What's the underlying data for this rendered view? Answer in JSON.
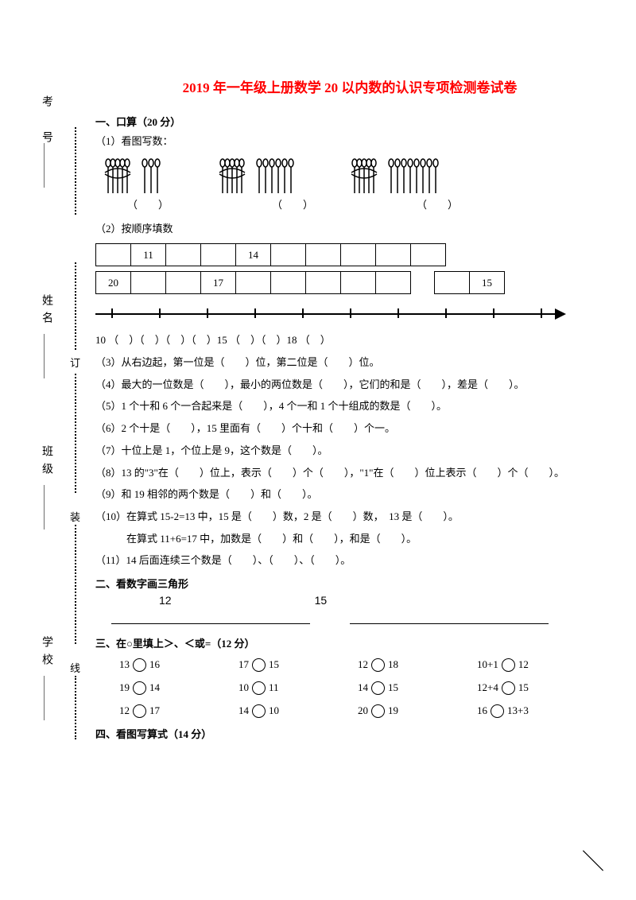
{
  "title": "2019 年一年级上册数学 20 以内数的认识专项检测卷试卷",
  "binding": {
    "labels": [
      "考 号",
      "姓名",
      "班级",
      "学校"
    ],
    "marks": [
      "订",
      "装",
      "线"
    ]
  },
  "section1": {
    "heading": "一、口算（20 分）",
    "q1_label": "（1）看图写数：",
    "paren": "（　　）",
    "q2_label": "（2）按顺序填数",
    "seq1": [
      "",
      "11",
      "",
      "",
      "14",
      "",
      "",
      "",
      "",
      ""
    ],
    "seq2_left": [
      "20",
      "",
      "",
      "17",
      "",
      "",
      "",
      "",
      ""
    ],
    "seq2_right": [
      "",
      "15"
    ],
    "numline": "10 （　）（　）（　）（　）15 （　）（　）18 （　）",
    "q3": "（3）从右边起，第一位是（　　）位，第二位是（　　）位。",
    "q4": "（4）最大的一位数是（　　），最小的两位数是（　　），它们的和是（　　），差是（　　）。",
    "q5": "（5）1 个十和 6 个一合起来是（　　），4 个一和 1 个十组成的数是（　　）。",
    "q6": "（6）2 个十是（　　），15 里面有（　　）个十和（　　）个一。",
    "q7": "（7）十位上是 1，个位上是 9，这个数是（　　）。",
    "q8": "（8）13 的\"3\"在（　　）位上，表示（　　）个（　　），\"1\"在（　　）位上表示（　　）个（　　）。",
    "q9": "（9）和 19 相邻的两个数是（　　）和（　　）。",
    "q10a": "（10）在算式 15-2=13 中，15 是（　　）数，2 是（　　）数，　13 是（　　）。",
    "q10b": "　　　在算式 11+6=17 中，加数是（　　）和（　　），和是（　　）。",
    "q11": "（11）14 后面连续三个数是（　　）、（　　）、（　　）。"
  },
  "section2": {
    "heading": "二、看数字画三角形",
    "nums": [
      "12",
      "15"
    ]
  },
  "section3": {
    "heading": "三、在○里填上＞、＜或=（12 分）",
    "rows": [
      [
        {
          "l": "13",
          "r": "16"
        },
        {
          "l": "17",
          "r": "15"
        },
        {
          "l": "12",
          "r": "18"
        },
        {
          "l": "10+1",
          "r": "12"
        }
      ],
      [
        {
          "l": "19",
          "r": "14"
        },
        {
          "l": "10",
          "r": "11"
        },
        {
          "l": "14",
          "r": "15"
        },
        {
          "l": "12+4",
          "r": "15"
        }
      ],
      [
        {
          "l": "12",
          "r": "17"
        },
        {
          "l": "14",
          "r": "10"
        },
        {
          "l": "20",
          "r": "19"
        },
        {
          "l": "16",
          "r": "13+3"
        }
      ]
    ]
  },
  "section4": {
    "heading": "四、看图写算式（14 分）"
  }
}
